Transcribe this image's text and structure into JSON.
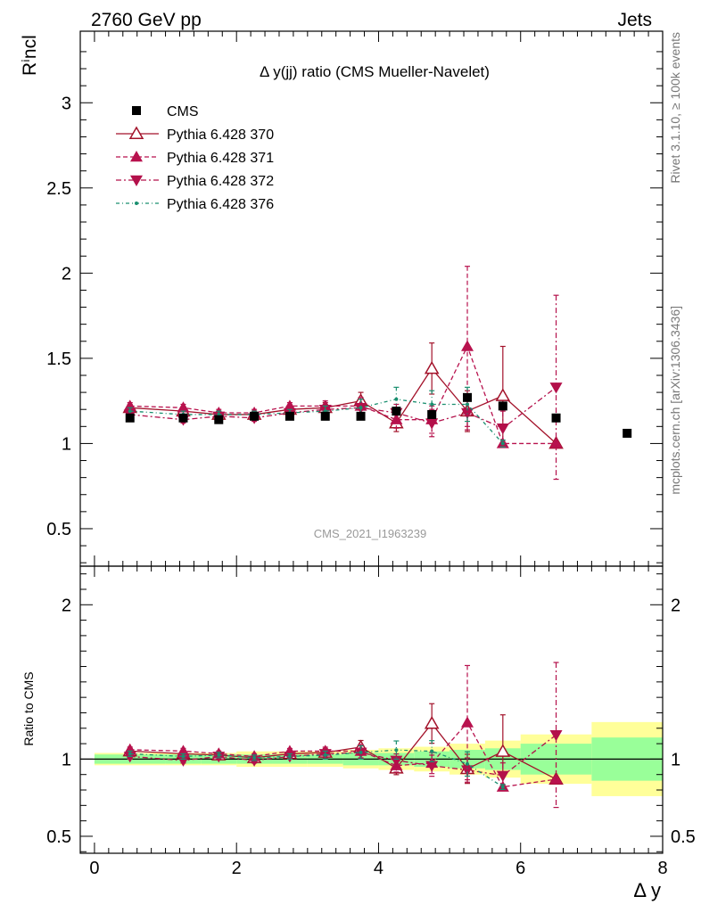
{
  "header": {
    "left": "2760 GeV pp",
    "right": "Jets"
  },
  "side": {
    "rivet": "Rivet 3.1.10, ≥ 100k events",
    "mcplots": "mcplots.cern.ch [arXiv:1306.3436]"
  },
  "chart_data": {
    "type": "scatter",
    "title": "Δ y(jj) ratio (CMS Mueller-Navelet)",
    "watermark": "CMS_2021_I1963239",
    "xlabel": "Δ y",
    "ylabel": "Rⁱncl",
    "ratio_ylabel": "Ratio to CMS",
    "xlim": [
      -0.2,
      8.0
    ],
    "ylim": [
      0.28,
      3.42
    ],
    "ratio_ylim": [
      0.39,
      2.25
    ],
    "xticks": [
      0,
      2,
      4,
      6,
      8
    ],
    "yticks": [
      0.5,
      1,
      1.5,
      2,
      2.5,
      3
    ],
    "ratio_yticks": [
      0.5,
      1,
      2
    ],
    "legend_position": "top-left",
    "x": [
      0.5,
      1.25,
      1.75,
      2.25,
      2.75,
      3.25,
      3.75,
      4.25,
      4.75,
      5.25,
      5.75,
      6.5,
      7.5
    ],
    "bin_edges": [
      0,
      1,
      1.5,
      2,
      2.5,
      3,
      3.5,
      4,
      4.5,
      5,
      5.5,
      6,
      7,
      8
    ],
    "series": [
      {
        "name": "CMS",
        "style": "data",
        "color": "#000000",
        "values": [
          1.15,
          1.15,
          1.14,
          1.16,
          1.16,
          1.16,
          1.16,
          1.19,
          1.17,
          1.27,
          1.22,
          1.15,
          1.06
        ]
      },
      {
        "name": "Pythia 6.428 370",
        "style": "solid-open-triangle",
        "color": "#a3122a",
        "values": [
          1.21,
          1.19,
          1.17,
          1.17,
          1.2,
          1.21,
          1.25,
          1.12,
          1.44,
          1.19,
          1.28,
          1.0
        ],
        "errors": [
          0.02,
          0.02,
          0.02,
          0.02,
          0.02,
          0.03,
          0.05,
          0.05,
          0.15,
          0.12,
          0.29,
          0.0
        ]
      },
      {
        "name": "Pythia 6.428 371",
        "style": "dashed-filled-triangle",
        "color": "#b8124e",
        "values": [
          1.22,
          1.21,
          1.18,
          1.18,
          1.22,
          1.22,
          1.22,
          1.14,
          1.14,
          1.57,
          1.0,
          1.0
        ],
        "errors": [
          0.02,
          0.02,
          0.02,
          0.02,
          0.02,
          0.03,
          0.05,
          0.05,
          0.08,
          0.47,
          0.0,
          0.0
        ]
      },
      {
        "name": "Pythia 6.428 372",
        "style": "dashdot-filled-down-triangle",
        "color": "#b3104a",
        "values": [
          1.17,
          1.14,
          1.16,
          1.15,
          1.18,
          1.2,
          1.21,
          1.18,
          1.12,
          1.18,
          1.09,
          1.33
        ],
        "errors": [
          0.02,
          0.02,
          0.02,
          0.02,
          0.02,
          0.03,
          0.05,
          0.05,
          0.08,
          0.1,
          0.1,
          0.54
        ]
      },
      {
        "name": "Pythia 6.428 376",
        "style": "dashdot-dot",
        "color": "#1a8f6f",
        "values": [
          1.19,
          1.17,
          1.17,
          1.17,
          1.18,
          1.19,
          1.21,
          1.26,
          1.23,
          1.23,
          1.0
        ],
        "errors": [
          0.02,
          0.02,
          0.02,
          0.02,
          0.02,
          0.03,
          0.05,
          0.07,
          0.08,
          0.1,
          0.02
        ]
      }
    ],
    "ratio_bands": {
      "green_halfwidth": [
        0.03,
        0.03,
        0.03,
        0.03,
        0.03,
        0.03,
        0.04,
        0.04,
        0.05,
        0.06,
        0.07,
        0.1,
        0.14
      ],
      "yellow_halfwidth": [
        0.04,
        0.04,
        0.04,
        0.05,
        0.05,
        0.05,
        0.06,
        0.07,
        0.08,
        0.1,
        0.12,
        0.16,
        0.24
      ]
    }
  }
}
